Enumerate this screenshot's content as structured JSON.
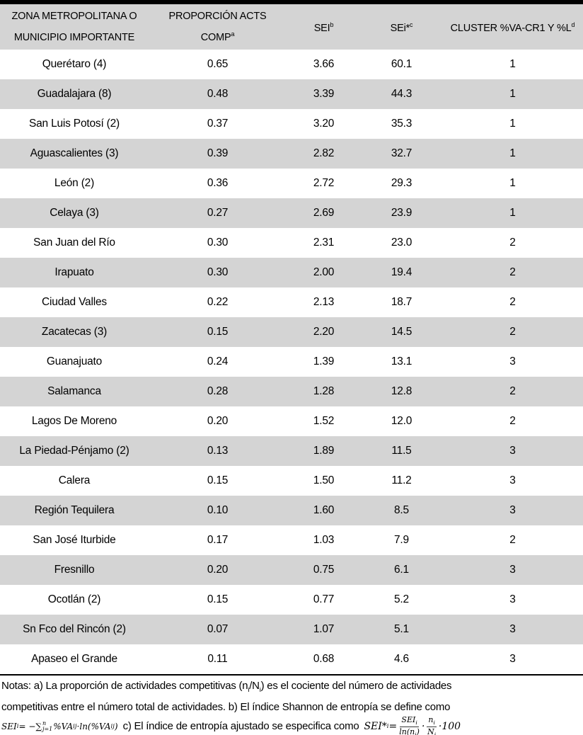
{
  "colors": {
    "row_stripe": "#d4d4d4",
    "header_bg": "#d4d4d4",
    "rule": "#000000",
    "bottom_line": "#8c8c8c",
    "bottom_band": "#c6c6c6"
  },
  "table": {
    "headers": [
      {
        "label": "ZONA METROPOLITANA O MUNICIPIO IMPORTANTE",
        "sup": ""
      },
      {
        "label": "PROPORCIÓN ACTS COMP",
        "sup": "a"
      },
      {
        "label": "SEI",
        "sup": "b"
      },
      {
        "label": "SEi*",
        "sup": "c"
      },
      {
        "label": "CLUSTER %VA-CR1 Y %L",
        "sup": "d"
      }
    ],
    "rows": [
      {
        "name": "Querétaro (4)",
        "prop": "0.65",
        "sei": "3.66",
        "sei_star": "60.1",
        "cluster": "1"
      },
      {
        "name": "Guadalajara (8)",
        "prop": "0.48",
        "sei": "3.39",
        "sei_star": "44.3",
        "cluster": "1"
      },
      {
        "name": "San Luis Potosí (2)",
        "prop": "0.37",
        "sei": "3.20",
        "sei_star": "35.3",
        "cluster": "1"
      },
      {
        "name": "Aguascalientes (3)",
        "prop": "0.39",
        "sei": "2.82",
        "sei_star": "32.7",
        "cluster": "1"
      },
      {
        "name": "León (2)",
        "prop": "0.36",
        "sei": "2.72",
        "sei_star": "29.3",
        "cluster": "1"
      },
      {
        "name": "Celaya (3)",
        "prop": "0.27",
        "sei": "2.69",
        "sei_star": "23.9",
        "cluster": "1"
      },
      {
        "name": "San Juan del Río",
        "prop": "0.30",
        "sei": "2.31",
        "sei_star": "23.0",
        "cluster": "2"
      },
      {
        "name": "Irapuato",
        "prop": "0.30",
        "sei": "2.00",
        "sei_star": "19.4",
        "cluster": "2"
      },
      {
        "name": "Ciudad Valles",
        "prop": "0.22",
        "sei": "2.13",
        "sei_star": "18.7",
        "cluster": "2"
      },
      {
        "name": "Zacatecas (3)",
        "prop": "0.15",
        "sei": "2.20",
        "sei_star": "14.5",
        "cluster": "2"
      },
      {
        "name": "Guanajuato",
        "prop": "0.24",
        "sei": "1.39",
        "sei_star": "13.1",
        "cluster": "3"
      },
      {
        "name": "Salamanca",
        "prop": "0.28",
        "sei": "1.28",
        "sei_star": "12.8",
        "cluster": "2"
      },
      {
        "name": "Lagos De Moreno",
        "prop": "0.20",
        "sei": "1.52",
        "sei_star": "12.0",
        "cluster": "2"
      },
      {
        "name": "La Piedad-Pénjamo (2)",
        "prop": "0.13",
        "sei": "1.89",
        "sei_star": "11.5",
        "cluster": "3"
      },
      {
        "name": "Calera",
        "prop": "0.15",
        "sei": "1.50",
        "sei_star": "11.2",
        "cluster": "3"
      },
      {
        "name": "Región Tequilera",
        "prop": "0.10",
        "sei": "1.60",
        "sei_star": "8.5",
        "cluster": "3"
      },
      {
        "name": "San José Iturbide",
        "prop": "0.17",
        "sei": "1.03",
        "sei_star": "7.9",
        "cluster": "2"
      },
      {
        "name": "Fresnillo",
        "prop": "0.20",
        "sei": "0.75",
        "sei_star": "6.1",
        "cluster": "3"
      },
      {
        "name": "Ocotlán (2)",
        "prop": "0.15",
        "sei": "0.77",
        "sei_star": "5.2",
        "cluster": "3"
      },
      {
        "name": "Sn Fco del Rincón (2)",
        "prop": "0.07",
        "sei": "1.07",
        "sei_star": "5.1",
        "cluster": "3"
      },
      {
        "name": "Apaseo el Grande",
        "prop": "0.11",
        "sei": "0.68",
        "sei_star": "4.6",
        "cluster": "3"
      }
    ]
  },
  "notes": {
    "line1_pre": "Notas: a) La proporción de actividades competitivas (n",
    "line1_sub1": "i",
    "line1_mid": "/N",
    "line1_sub2": "i",
    "line1_post": ") es el cociente del número de actividades",
    "line2": "competitivas entre el número total de actividades. b) El índice Shannon de entropía se define como",
    "line3_text": "c) El índice de entropía ajustado se especifica como",
    "formula_b": {
      "lhs": "SEI",
      "lhs_sub": "i",
      "eq": " = −",
      "sigma": "∑",
      "sigma_sup": "n",
      "sigma_sub": "j=1",
      "term1": " %VA",
      "term1_sub": "ij",
      "cdot": " · ",
      "term2": "ln(%VA",
      "term2_sub": "ij",
      "close": ")"
    },
    "formula_c": {
      "lhs": "SEI*",
      "lhs_sub": "i",
      "eq": " = ",
      "f1_num": "SEI",
      "f1_num_sub": "i",
      "f1_den": "ln(n",
      "f1_den_sub": "i",
      "f1_den_close": ")",
      "cdot1": "·",
      "f2_num": "n",
      "f2_num_sub": "i",
      "f2_den": "N",
      "f2_den_sub": "i",
      "cdot2": "·",
      "hundred": "100"
    }
  }
}
